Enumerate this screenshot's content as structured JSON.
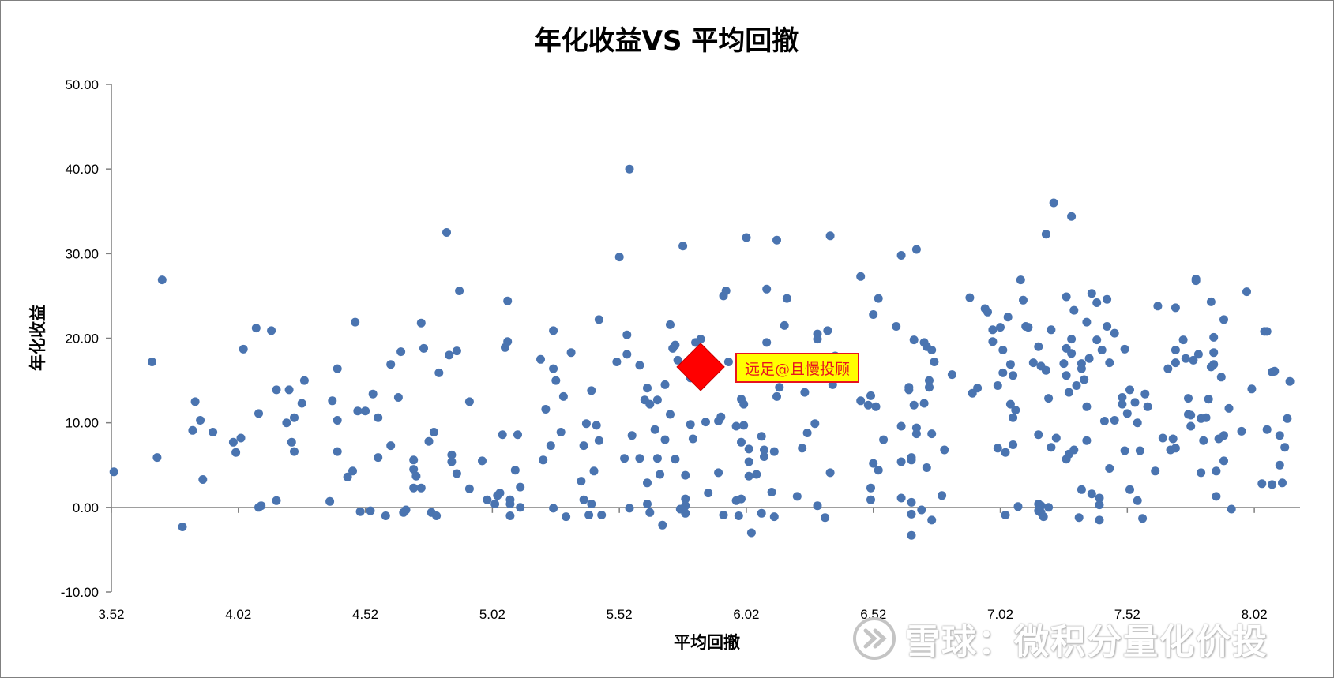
{
  "chart_data": {
    "type": "scatter",
    "title": "年化收益VS 平均回撤",
    "xlabel": "平均回撤",
    "ylabel": "年化收益",
    "xlim": [
      3.52,
      8.2
    ],
    "ylim": [
      -10,
      50
    ],
    "x_ticks": [
      "3.52",
      "4.02",
      "4.52",
      "5.02",
      "5.52",
      "6.02",
      "6.52",
      "7.02",
      "7.52",
      "8.02"
    ],
    "y_ticks": [
      "50.00",
      "40.00",
      "30.00",
      "20.00",
      "10.00",
      "0.00",
      "-10.00"
    ],
    "grid": false,
    "legend": "none",
    "point_color": "#4a74b0",
    "highlight_color": "#ff0000",
    "highlight": {
      "x": 5.84,
      "y": 16.6,
      "label": "远足@且慢投顾"
    },
    "points": [
      [
        3.53,
        4.2
      ],
      [
        3.68,
        17.2
      ],
      [
        3.7,
        5.9
      ],
      [
        3.72,
        26.9
      ],
      [
        3.8,
        -2.3
      ],
      [
        3.84,
        9.1
      ],
      [
        3.85,
        12.5
      ],
      [
        3.87,
        10.3
      ],
      [
        3.88,
        3.3
      ],
      [
        3.92,
        8.9
      ],
      [
        4.0,
        7.7
      ],
      [
        4.01,
        6.5
      ],
      [
        4.03,
        8.2
      ],
      [
        4.04,
        18.7
      ],
      [
        4.09,
        21.2
      ],
      [
        4.1,
        11.1
      ],
      [
        4.1,
        0.0
      ],
      [
        4.11,
        0.2
      ],
      [
        4.15,
        20.9
      ],
      [
        4.17,
        13.9
      ],
      [
        4.17,
        0.8
      ],
      [
        4.21,
        10.0
      ],
      [
        4.22,
        13.9
      ],
      [
        4.23,
        7.7
      ],
      [
        4.24,
        10.6
      ],
      [
        4.24,
        6.6
      ],
      [
        4.27,
        12.3
      ],
      [
        4.28,
        15.0
      ],
      [
        4.38,
        0.7
      ],
      [
        4.39,
        12.6
      ],
      [
        4.41,
        16.4
      ],
      [
        4.41,
        10.3
      ],
      [
        4.41,
        6.6
      ],
      [
        4.45,
        3.6
      ],
      [
        4.47,
        4.3
      ],
      [
        4.48,
        21.9
      ],
      [
        4.49,
        11.4
      ],
      [
        4.5,
        -0.5
      ],
      [
        4.52,
        11.4
      ],
      [
        4.54,
        -0.4
      ],
      [
        4.55,
        13.4
      ],
      [
        4.57,
        10.6
      ],
      [
        4.57,
        5.9
      ],
      [
        4.6,
        -1.0
      ],
      [
        4.62,
        7.3
      ],
      [
        4.62,
        16.9
      ],
      [
        4.65,
        13.0
      ],
      [
        4.66,
        18.4
      ],
      [
        4.67,
        -0.6
      ],
      [
        4.68,
        -0.3
      ],
      [
        4.71,
        5.6
      ],
      [
        4.71,
        4.5
      ],
      [
        4.72,
        3.7
      ],
      [
        4.71,
        2.3
      ],
      [
        4.74,
        2.3
      ],
      [
        4.74,
        21.8
      ],
      [
        4.75,
        18.8
      ],
      [
        4.77,
        7.8
      ],
      [
        4.78,
        -0.6
      ],
      [
        4.79,
        8.9
      ],
      [
        4.8,
        -1.0
      ],
      [
        4.81,
        15.9
      ],
      [
        4.84,
        32.5
      ],
      [
        4.85,
        18.0
      ],
      [
        4.86,
        6.2
      ],
      [
        4.86,
        5.4
      ],
      [
        4.88,
        18.5
      ],
      [
        4.88,
        4.0
      ],
      [
        4.89,
        25.6
      ],
      [
        4.93,
        12.5
      ],
      [
        4.93,
        2.2
      ],
      [
        4.98,
        5.5
      ],
      [
        5.0,
        0.9
      ],
      [
        5.03,
        0.4
      ],
      [
        5.04,
        1.4
      ],
      [
        5.05,
        1.7
      ],
      [
        5.06,
        8.6
      ],
      [
        5.07,
        18.9
      ],
      [
        5.08,
        19.6
      ],
      [
        5.08,
        24.4
      ],
      [
        5.09,
        -1.0
      ],
      [
        5.09,
        0.4
      ],
      [
        5.09,
        0.9
      ],
      [
        5.11,
        4.4
      ],
      [
        5.12,
        8.6
      ],
      [
        5.13,
        2.4
      ],
      [
        5.13,
        0.0
      ],
      [
        5.21,
        17.5
      ],
      [
        5.22,
        5.6
      ],
      [
        5.23,
        11.6
      ],
      [
        5.25,
        7.3
      ],
      [
        5.26,
        -0.1
      ],
      [
        5.26,
        16.4
      ],
      [
        5.26,
        20.9
      ],
      [
        5.27,
        15.0
      ],
      [
        5.29,
        8.9
      ],
      [
        5.3,
        13.1
      ],
      [
        5.31,
        -1.1
      ],
      [
        5.33,
        18.3
      ],
      [
        5.37,
        3.1
      ],
      [
        5.38,
        7.3
      ],
      [
        5.38,
        0.9
      ],
      [
        5.39,
        9.9
      ],
      [
        5.4,
        -0.9
      ],
      [
        5.41,
        13.8
      ],
      [
        5.41,
        0.4
      ],
      [
        5.42,
        4.3
      ],
      [
        5.43,
        9.7
      ],
      [
        5.44,
        7.9
      ],
      [
        5.44,
        22.2
      ],
      [
        5.45,
        -0.9
      ],
      [
        5.51,
        17.2
      ],
      [
        5.52,
        29.6
      ],
      [
        5.54,
        5.8
      ],
      [
        5.55,
        20.4
      ],
      [
        5.55,
        18.1
      ],
      [
        5.56,
        40.0
      ],
      [
        5.56,
        -0.1
      ],
      [
        5.57,
        8.5
      ],
      [
        5.6,
        16.8
      ],
      [
        5.6,
        5.8
      ],
      [
        5.62,
        12.7
      ],
      [
        5.63,
        14.1
      ],
      [
        5.63,
        2.9
      ],
      [
        5.63,
        0.4
      ],
      [
        5.64,
        12.2
      ],
      [
        5.64,
        -0.6
      ],
      [
        5.66,
        9.2
      ],
      [
        5.67,
        5.8
      ],
      [
        5.67,
        12.7
      ],
      [
        5.68,
        3.9
      ],
      [
        5.69,
        -2.1
      ],
      [
        5.7,
        8.0
      ],
      [
        5.7,
        14.5
      ],
      [
        5.72,
        21.6
      ],
      [
        5.72,
        11.0
      ],
      [
        5.73,
        18.8
      ],
      [
        5.74,
        5.7
      ],
      [
        5.74,
        19.2
      ],
      [
        5.75,
        17.4
      ],
      [
        5.76,
        -0.2
      ],
      [
        5.77,
        30.9
      ],
      [
        5.78,
        3.8
      ],
      [
        5.78,
        1.0
      ],
      [
        5.78,
        0.2
      ],
      [
        5.78,
        -0.7
      ],
      [
        5.8,
        15.3
      ],
      [
        5.8,
        9.8
      ],
      [
        5.81,
        8.1
      ],
      [
        5.82,
        19.5
      ],
      [
        5.84,
        19.9
      ],
      [
        5.86,
        10.1
      ],
      [
        5.87,
        1.7
      ],
      [
        5.91,
        4.1
      ],
      [
        5.91,
        10.2
      ],
      [
        5.92,
        10.7
      ],
      [
        5.93,
        25.0
      ],
      [
        5.93,
        -0.9
      ],
      [
        5.94,
        25.6
      ],
      [
        5.95,
        17.2
      ],
      [
        5.98,
        9.6
      ],
      [
        5.98,
        0.8
      ],
      [
        5.99,
        -1.0
      ],
      [
        6.0,
        12.8
      ],
      [
        6.0,
        1.0
      ],
      [
        6.0,
        7.7
      ],
      [
        6.01,
        12.2
      ],
      [
        6.01,
        9.7
      ],
      [
        6.02,
        31.9
      ],
      [
        6.03,
        6.9
      ],
      [
        6.03,
        5.4
      ],
      [
        6.03,
        3.7
      ],
      [
        6.04,
        -3.0
      ],
      [
        6.06,
        3.9
      ],
      [
        6.08,
        -0.7
      ],
      [
        6.08,
        8.4
      ],
      [
        6.09,
        6.8
      ],
      [
        6.09,
        6.0
      ],
      [
        6.1,
        19.5
      ],
      [
        6.1,
        25.8
      ],
      [
        6.12,
        1.8
      ],
      [
        6.13,
        -1.1
      ],
      [
        6.13,
        6.6
      ],
      [
        6.14,
        31.6
      ],
      [
        6.14,
        13.1
      ],
      [
        6.15,
        14.2
      ],
      [
        6.17,
        21.5
      ],
      [
        6.18,
        24.7
      ],
      [
        6.22,
        1.3
      ],
      [
        6.24,
        7.0
      ],
      [
        6.25,
        13.6
      ],
      [
        6.26,
        8.8
      ],
      [
        6.29,
        9.9
      ],
      [
        6.3,
        0.2
      ],
      [
        6.3,
        20.5
      ],
      [
        6.3,
        19.9
      ],
      [
        6.33,
        -1.2
      ],
      [
        6.34,
        20.9
      ],
      [
        6.35,
        4.1
      ],
      [
        6.35,
        32.1
      ],
      [
        6.36,
        14.5
      ],
      [
        6.37,
        17.9
      ],
      [
        6.47,
        27.3
      ],
      [
        6.47,
        12.6
      ],
      [
        6.5,
        12.1
      ],
      [
        6.51,
        2.3
      ],
      [
        6.51,
        0.9
      ],
      [
        6.51,
        13.2
      ],
      [
        6.52,
        5.2
      ],
      [
        6.52,
        22.8
      ],
      [
        6.53,
        11.9
      ],
      [
        6.54,
        4.4
      ],
      [
        6.54,
        24.7
      ],
      [
        6.56,
        8.0
      ],
      [
        6.61,
        21.4
      ],
      [
        6.63,
        29.8
      ],
      [
        6.63,
        9.6
      ],
      [
        6.63,
        5.4
      ],
      [
        6.63,
        1.1
      ],
      [
        6.66,
        14.2
      ],
      [
        6.66,
        13.9
      ],
      [
        6.67,
        5.9
      ],
      [
        6.67,
        5.6
      ],
      [
        6.67,
        0.6
      ],
      [
        6.67,
        -0.8
      ],
      [
        6.67,
        -3.3
      ],
      [
        6.68,
        19.8
      ],
      [
        6.68,
        12.1
      ],
      [
        6.69,
        30.5
      ],
      [
        6.69,
        9.4
      ],
      [
        6.69,
        8.7
      ],
      [
        6.71,
        -0.3
      ],
      [
        6.72,
        12.3
      ],
      [
        6.72,
        19.5
      ],
      [
        6.73,
        4.7
      ],
      [
        6.73,
        19.0
      ],
      [
        6.74,
        14.2
      ],
      [
        6.74,
        15.0
      ],
      [
        6.75,
        18.6
      ],
      [
        6.75,
        8.7
      ],
      [
        6.75,
        -1.5
      ],
      [
        6.76,
        17.2
      ],
      [
        6.79,
        1.4
      ],
      [
        6.8,
        6.8
      ],
      [
        6.83,
        15.7
      ],
      [
        6.9,
        24.8
      ],
      [
        6.91,
        13.5
      ],
      [
        6.93,
        14.1
      ],
      [
        6.96,
        23.5
      ],
      [
        6.97,
        23.1
      ],
      [
        6.99,
        19.6
      ],
      [
        6.99,
        21.0
      ],
      [
        7.01,
        7.0
      ],
      [
        7.01,
        14.4
      ],
      [
        7.02,
        21.3
      ],
      [
        7.03,
        18.6
      ],
      [
        7.03,
        15.9
      ],
      [
        7.04,
        6.5
      ],
      [
        7.04,
        -0.9
      ],
      [
        7.05,
        22.5
      ],
      [
        7.06,
        16.9
      ],
      [
        7.06,
        12.2
      ],
      [
        7.07,
        15.6
      ],
      [
        7.07,
        10.6
      ],
      [
        7.07,
        7.4
      ],
      [
        7.08,
        11.5
      ],
      [
        7.09,
        0.1
      ],
      [
        7.1,
        26.9
      ],
      [
        7.11,
        24.5
      ],
      [
        7.12,
        21.4
      ],
      [
        7.13,
        21.3
      ],
      [
        7.15,
        17.1
      ],
      [
        7.17,
        0.4
      ],
      [
        7.17,
        19.0
      ],
      [
        7.17,
        8.6
      ],
      [
        7.17,
        -0.4
      ],
      [
        7.18,
        16.7
      ],
      [
        7.18,
        0.2
      ],
      [
        7.18,
        -0.6
      ],
      [
        7.19,
        -1.1
      ],
      [
        7.2,
        32.3
      ],
      [
        7.2,
        16.2
      ],
      [
        7.21,
        12.9
      ],
      [
        7.21,
        0.0
      ],
      [
        7.22,
        21.0
      ],
      [
        7.22,
        7.1
      ],
      [
        7.23,
        36.0
      ],
      [
        7.24,
        8.2
      ],
      [
        7.27,
        17.0
      ],
      [
        7.28,
        24.9
      ],
      [
        7.28,
        15.6
      ],
      [
        7.28,
        18.8
      ],
      [
        7.28,
        5.7
      ],
      [
        7.29,
        6.3
      ],
      [
        7.29,
        13.6
      ],
      [
        7.3,
        34.4
      ],
      [
        7.3,
        18.2
      ],
      [
        7.3,
        19.9
      ],
      [
        7.31,
        6.8
      ],
      [
        7.31,
        23.3
      ],
      [
        7.32,
        14.4
      ],
      [
        7.33,
        -1.2
      ],
      [
        7.34,
        17.0
      ],
      [
        7.34,
        16.4
      ],
      [
        7.34,
        2.1
      ],
      [
        7.35,
        15.1
      ],
      [
        7.36,
        21.9
      ],
      [
        7.36,
        11.9
      ],
      [
        7.36,
        7.9
      ],
      [
        7.37,
        17.6
      ],
      [
        7.38,
        25.3
      ],
      [
        7.38,
        1.6
      ],
      [
        7.4,
        24.2
      ],
      [
        7.4,
        19.8
      ],
      [
        7.41,
        0.3
      ],
      [
        7.41,
        1.1
      ],
      [
        7.41,
        -1.5
      ],
      [
        7.42,
        18.6
      ],
      [
        7.43,
        10.2
      ],
      [
        7.44,
        21.4
      ],
      [
        7.44,
        24.6
      ],
      [
        7.45,
        4.6
      ],
      [
        7.45,
        17.1
      ],
      [
        7.47,
        10.3
      ],
      [
        7.47,
        20.6
      ],
      [
        7.5,
        13.0
      ],
      [
        7.5,
        12.2
      ],
      [
        7.51,
        18.7
      ],
      [
        7.51,
        6.7
      ],
      [
        7.52,
        11.1
      ],
      [
        7.53,
        13.9
      ],
      [
        7.53,
        2.1
      ],
      [
        7.55,
        12.4
      ],
      [
        7.56,
        0.8
      ],
      [
        7.56,
        10.0
      ],
      [
        7.57,
        6.7
      ],
      [
        7.58,
        -1.3
      ],
      [
        7.59,
        13.4
      ],
      [
        7.6,
        11.9
      ],
      [
        7.63,
        4.3
      ],
      [
        7.64,
        23.8
      ],
      [
        7.66,
        8.2
      ],
      [
        7.68,
        16.4
      ],
      [
        7.69,
        6.8
      ],
      [
        7.7,
        8.1
      ],
      [
        7.71,
        23.6
      ],
      [
        7.71,
        17.1
      ],
      [
        7.71,
        18.6
      ],
      [
        7.71,
        7.0
      ],
      [
        7.74,
        19.8
      ],
      [
        7.75,
        17.6
      ],
      [
        7.76,
        12.9
      ],
      [
        7.76,
        11.0
      ],
      [
        7.77,
        10.9
      ],
      [
        7.77,
        9.6
      ],
      [
        7.78,
        17.4
      ],
      [
        7.79,
        26.8
      ],
      [
        7.79,
        27.0
      ],
      [
        7.8,
        18.1
      ],
      [
        7.81,
        4.1
      ],
      [
        7.81,
        10.5
      ],
      [
        7.82,
        7.9
      ],
      [
        7.83,
        10.6
      ],
      [
        7.84,
        12.8
      ],
      [
        7.85,
        24.3
      ],
      [
        7.85,
        16.6
      ],
      [
        7.86,
        20.1
      ],
      [
        7.86,
        18.3
      ],
      [
        7.86,
        16.9
      ],
      [
        7.87,
        1.3
      ],
      [
        7.87,
        4.3
      ],
      [
        7.88,
        8.1
      ],
      [
        7.89,
        15.4
      ],
      [
        7.9,
        22.2
      ],
      [
        7.9,
        8.5
      ],
      [
        7.9,
        5.5
      ],
      [
        7.92,
        11.7
      ],
      [
        7.93,
        -0.2
      ],
      [
        7.97,
        9.0
      ],
      [
        7.99,
        25.5
      ],
      [
        8.01,
        14.0
      ],
      [
        8.05,
        2.8
      ],
      [
        8.06,
        20.8
      ],
      [
        8.07,
        20.8
      ],
      [
        8.07,
        9.2
      ],
      [
        8.09,
        2.7
      ],
      [
        8.09,
        16.0
      ],
      [
        8.1,
        16.1
      ],
      [
        8.12,
        8.5
      ],
      [
        8.12,
        5.0
      ],
      [
        8.13,
        2.9
      ],
      [
        8.14,
        7.1
      ],
      [
        8.15,
        10.5
      ],
      [
        8.16,
        14.9
      ]
    ]
  },
  "watermark": {
    "text": "雪球：微积分量化价投"
  }
}
